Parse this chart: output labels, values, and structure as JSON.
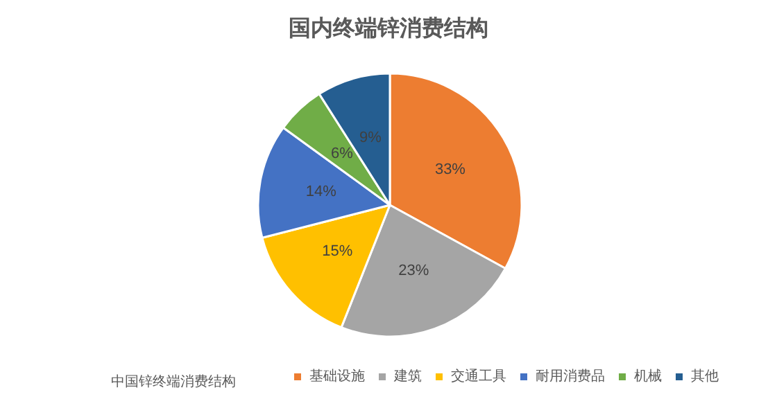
{
  "chart_data": {
    "type": "pie",
    "title": "国内终端锌消费结构",
    "legend_title": "中国锌终端消费结构",
    "categories": [
      "基础设施",
      "建筑",
      "交通工具",
      "耐用消费品",
      "机械",
      "其他"
    ],
    "values": [
      33,
      23,
      15,
      14,
      6,
      9
    ],
    "value_labels": [
      "33%",
      "23%",
      "15%",
      "14%",
      "6%",
      "9%"
    ],
    "colors": [
      "#ed7d31",
      "#a5a5a5",
      "#ffc000",
      "#4472c4",
      "#70ad47",
      "#255e91"
    ],
    "legend": "bottom"
  }
}
